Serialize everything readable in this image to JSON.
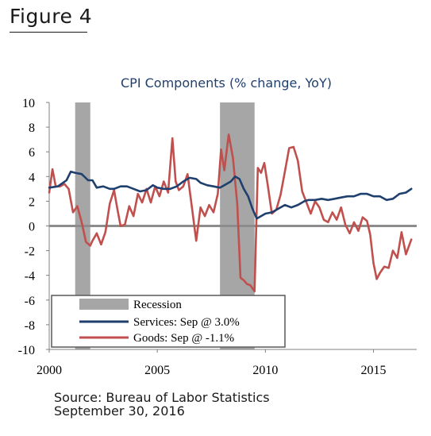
{
  "figure_label": "Figure 4",
  "source": {
    "line1": "Source: Bureau of Labor Statistics",
    "line2": "September 30, 2016"
  },
  "chart_data": {
    "type": "line",
    "title": "CPI Components (% change, YoY)",
    "xlabel": "",
    "ylabel": "",
    "xlim": [
      2000,
      2017.0
    ],
    "ylim": [
      -10,
      10
    ],
    "x_ticks": [
      2000,
      2005,
      2010,
      2015
    ],
    "y_ticks": [
      10,
      8,
      6,
      4,
      2,
      0,
      -2,
      -4,
      -6,
      -8,
      -10
    ],
    "grid": false,
    "legend_position": "bottom-left",
    "recessions": [
      {
        "start": 2001.2,
        "end": 2001.9
      },
      {
        "start": 2007.9,
        "end": 2009.5
      }
    ],
    "legend": {
      "recession_label": "Recession"
    },
    "colors": {
      "recession": "#a6a6a6",
      "services": "#1f3f6e",
      "goods": "#c0504d",
      "title": "#1f3f6e",
      "zero_line": "#8c8c8c"
    },
    "series": [
      {
        "name": "Services: Sep @ 3.0%",
        "x": [
          2000.0,
          2000.4,
          2000.8,
          2001.0,
          2001.2,
          2001.5,
          2001.8,
          2002.0,
          2002.2,
          2002.5,
          2002.8,
          2003.0,
          2003.3,
          2003.6,
          2003.9,
          2004.2,
          2004.5,
          2004.8,
          2005.0,
          2005.3,
          2005.6,
          2005.9,
          2006.2,
          2006.5,
          2006.8,
          2007.0,
          2007.3,
          2007.6,
          2007.9,
          2008.1,
          2008.4,
          2008.6,
          2008.8,
          2009.0,
          2009.2,
          2009.4,
          2009.6,
          2009.8,
          2010.0,
          2010.3,
          2010.6,
          2010.9,
          2011.2,
          2011.5,
          2011.8,
          2012.0,
          2012.3,
          2012.6,
          2012.9,
          2013.2,
          2013.5,
          2013.8,
          2014.1,
          2014.4,
          2014.7,
          2015.0,
          2015.3,
          2015.6,
          2015.9,
          2016.2,
          2016.5,
          2016.75
        ],
        "values": [
          3.1,
          3.2,
          3.7,
          4.4,
          4.3,
          4.2,
          3.7,
          3.7,
          3.1,
          3.2,
          3.0,
          3.0,
          3.2,
          3.2,
          3.0,
          2.8,
          2.9,
          3.3,
          3.1,
          3.0,
          3.0,
          3.2,
          3.6,
          3.9,
          3.8,
          3.5,
          3.3,
          3.2,
          3.1,
          3.3,
          3.6,
          4.0,
          3.8,
          3.0,
          2.4,
          1.4,
          0.6,
          0.8,
          1.0,
          1.1,
          1.4,
          1.7,
          1.5,
          1.7,
          2.0,
          2.1,
          2.1,
          2.2,
          2.1,
          2.2,
          2.3,
          2.4,
          2.4,
          2.6,
          2.6,
          2.4,
          2.4,
          2.1,
          2.2,
          2.6,
          2.7,
          3.0
        ]
      },
      {
        "name": "Goods: Sep @ -1.1%",
        "x": [
          2000.0,
          2000.15,
          2000.3,
          2000.5,
          2000.7,
          2000.9,
          2001.1,
          2001.3,
          2001.5,
          2001.7,
          2001.9,
          2002.0,
          2002.2,
          2002.4,
          2002.6,
          2002.8,
          2003.0,
          2003.15,
          2003.3,
          2003.5,
          2003.7,
          2003.9,
          2004.1,
          2004.3,
          2004.5,
          2004.7,
          2004.9,
          2005.1,
          2005.3,
          2005.5,
          2005.7,
          2005.85,
          2006.0,
          2006.2,
          2006.4,
          2006.6,
          2006.8,
          2007.0,
          2007.2,
          2007.4,
          2007.6,
          2007.8,
          2007.95,
          2008.1,
          2008.3,
          2008.5,
          2008.7,
          2008.85,
          2009.0,
          2009.15,
          2009.3,
          2009.5,
          2009.65,
          2009.8,
          2009.95,
          2010.1,
          2010.3,
          2010.5,
          2010.7,
          2010.9,
          2011.1,
          2011.3,
          2011.5,
          2011.7,
          2011.9,
          2012.1,
          2012.3,
          2012.5,
          2012.7,
          2012.9,
          2013.1,
          2013.3,
          2013.5,
          2013.7,
          2013.9,
          2014.1,
          2014.3,
          2014.5,
          2014.7,
          2014.85,
          2015.0,
          2015.15,
          2015.3,
          2015.5,
          2015.7,
          2015.9,
          2016.1,
          2016.3,
          2016.5,
          2016.75
        ],
        "values": [
          2.7,
          4.6,
          3.2,
          3.2,
          3.4,
          3.0,
          1.1,
          1.6,
          0.3,
          -1.3,
          -1.6,
          -1.2,
          -0.6,
          -1.5,
          -0.5,
          1.8,
          2.9,
          1.4,
          0.0,
          0.1,
          1.6,
          0.8,
          2.6,
          1.9,
          3.0,
          1.9,
          3.2,
          2.4,
          3.6,
          2.7,
          7.1,
          3.6,
          2.9,
          3.2,
          4.2,
          1.5,
          -1.2,
          1.5,
          0.8,
          1.7,
          1.1,
          2.6,
          6.2,
          4.5,
          7.4,
          5.5,
          1.8,
          -4.2,
          -4.4,
          -4.7,
          -4.8,
          -5.3,
          4.7,
          4.3,
          5.1,
          3.4,
          1.0,
          1.3,
          2.5,
          4.4,
          6.3,
          6.4,
          5.3,
          2.8,
          1.9,
          1.0,
          2.0,
          1.5,
          0.5,
          0.3,
          1.1,
          0.5,
          1.5,
          0.1,
          -0.6,
          0.3,
          -0.4,
          0.7,
          0.4,
          -0.7,
          -3.0,
          -4.3,
          -3.8,
          -3.3,
          -3.4,
          -2.0,
          -2.6,
          -0.5,
          -2.3,
          -1.1
        ]
      }
    ]
  }
}
